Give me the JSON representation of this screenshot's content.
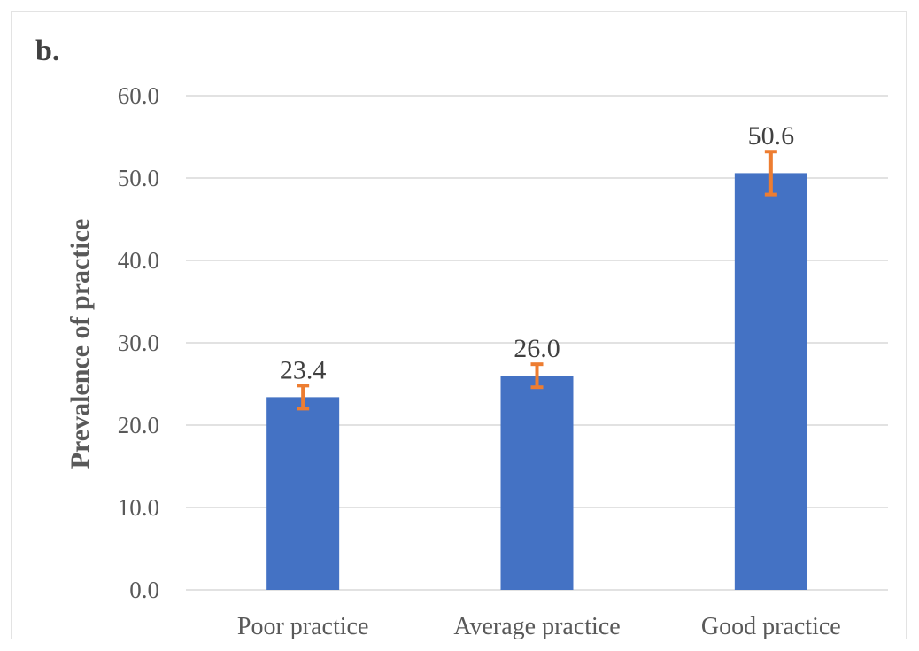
{
  "chart_data": {
    "type": "bar",
    "panel_label": "b.",
    "title": "",
    "xlabel": "",
    "ylabel": "Prevalence of practice",
    "categories": [
      "Poor practice",
      "Average practice",
      "Good practice"
    ],
    "values": [
      23.4,
      26.0,
      50.6
    ],
    "data_labels": [
      "23.4",
      "26.0",
      "50.6"
    ],
    "error_low": [
      22.0,
      24.6,
      48.0
    ],
    "error_high": [
      24.8,
      27.4,
      53.2
    ],
    "ylim": [
      0,
      60
    ],
    "yticks": [
      0,
      10,
      20,
      30,
      40,
      50,
      60
    ],
    "ytick_labels": [
      "0.0",
      "10.0",
      "20.0",
      "30.0",
      "40.0",
      "50.0",
      "60.0"
    ],
    "grid": true,
    "legend": "none",
    "colors": {
      "bar": "#4472C4",
      "error_bar": "#ED7D31",
      "grid": "#D9D9D9",
      "text": "#595959"
    }
  }
}
